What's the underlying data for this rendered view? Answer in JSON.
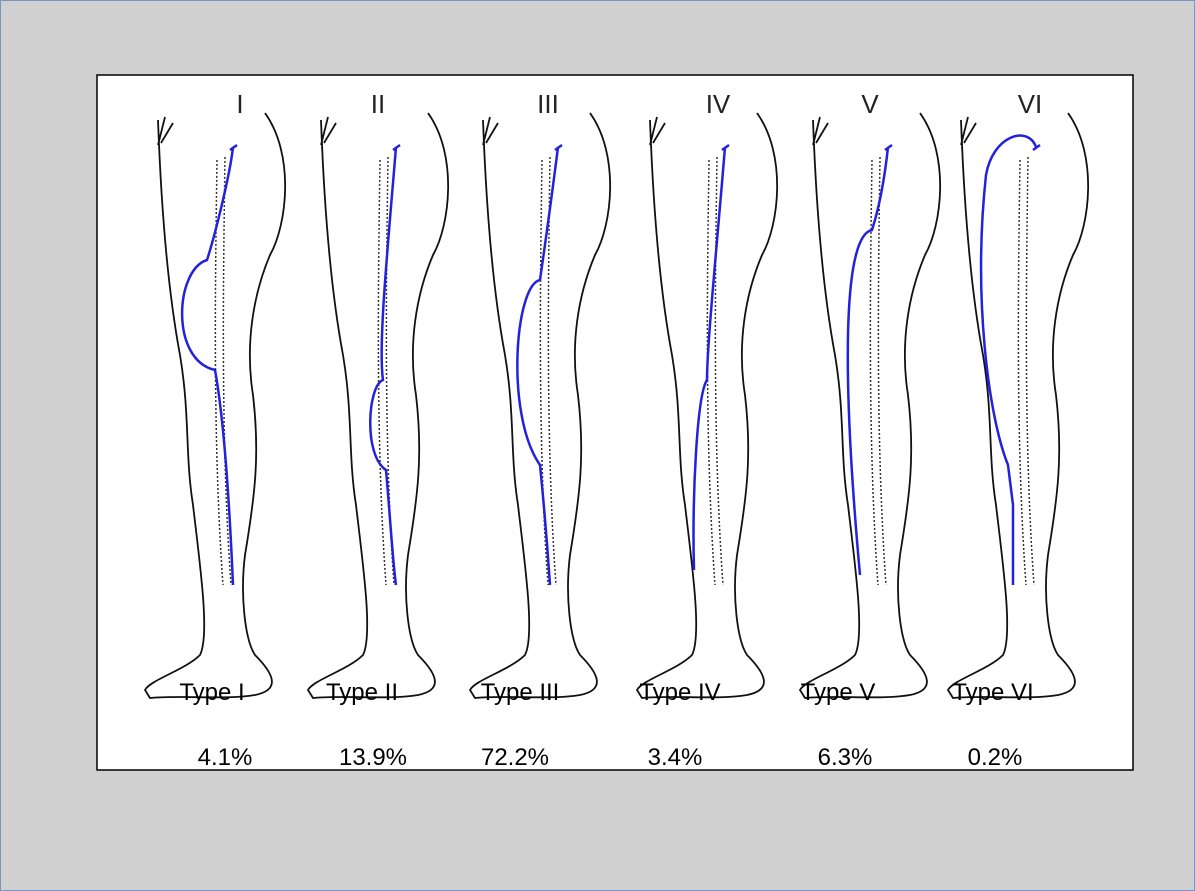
{
  "diagram": {
    "types": [
      {
        "numeral": "I",
        "label": "Type I",
        "percent": "4.1%"
      },
      {
        "numeral": "II",
        "label": "Type II",
        "percent": "13.9%"
      },
      {
        "numeral": "III",
        "label": "Type III",
        "percent": "72.2%"
      },
      {
        "numeral": "IV",
        "label": "Type IV",
        "percent": "3.4%"
      },
      {
        "numeral": "V",
        "label": "Type V",
        "percent": "6.3%"
      },
      {
        "numeral": "VI",
        "label": "Type VI",
        "percent": "0.2%"
      }
    ]
  }
}
